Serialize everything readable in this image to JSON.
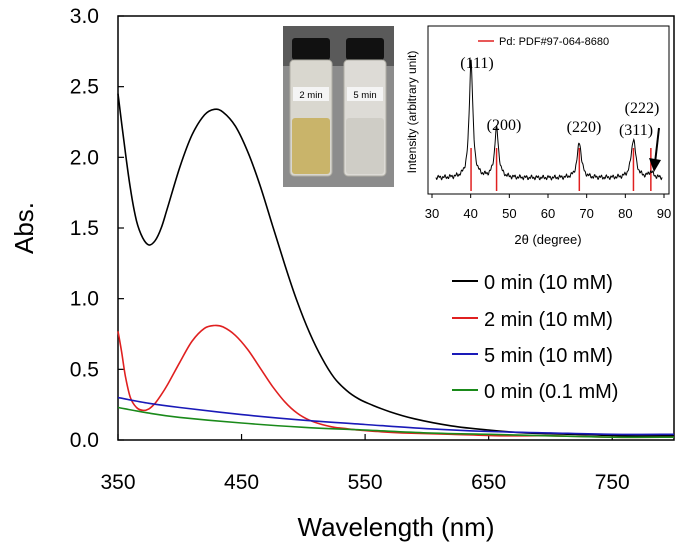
{
  "chart_data": [
    {
      "type": "line",
      "xlabel": "Wavelength (nm)",
      "ylabel": "Abs.",
      "xlim": [
        350,
        800
      ],
      "ylim": [
        0.0,
        3.0
      ],
      "x_ticks": [
        350,
        450,
        550,
        650,
        750
      ],
      "x_tick_labels": [
        "350",
        "450",
        "550",
        "650",
        "750"
      ],
      "y_ticks": [
        0.0,
        0.5,
        1.0,
        1.5,
        2.0,
        2.5,
        3.0
      ],
      "y_tick_labels": [
        "0.0",
        "0.5",
        "1.0",
        "1.5",
        "2.0",
        "2.5",
        "3.0"
      ],
      "legend_position": "bottom-right",
      "series": [
        {
          "name": "0 min (10 mM)",
          "color": "#000000",
          "x": [
            350,
            355,
            360,
            365,
            370,
            375,
            380,
            385,
            390,
            400,
            410,
            420,
            428,
            435,
            445,
            455,
            465,
            475,
            485,
            495,
            505,
            515,
            525,
            535,
            545,
            555,
            570,
            590,
            620,
            650,
            680,
            720,
            760,
            800
          ],
          "y": [
            2.45,
            2.1,
            1.78,
            1.55,
            1.43,
            1.38,
            1.41,
            1.5,
            1.64,
            1.93,
            2.16,
            2.3,
            2.34,
            2.32,
            2.22,
            2.04,
            1.8,
            1.52,
            1.24,
            0.98,
            0.76,
            0.58,
            0.44,
            0.35,
            0.29,
            0.25,
            0.2,
            0.15,
            0.1,
            0.07,
            0.05,
            0.04,
            0.03,
            0.03
          ]
        },
        {
          "name": "2 min (10 mM)",
          "color": "#e02020",
          "x": [
            350,
            353,
            356,
            360,
            365,
            370,
            375,
            380,
            385,
            390,
            400,
            410,
            420,
            428,
            435,
            445,
            455,
            465,
            475,
            485,
            495,
            505,
            515,
            525,
            535,
            545,
            560,
            580,
            620,
            660,
            700,
            750,
            800
          ],
          "y": [
            0.77,
            0.62,
            0.45,
            0.3,
            0.23,
            0.21,
            0.22,
            0.26,
            0.32,
            0.39,
            0.55,
            0.7,
            0.79,
            0.81,
            0.8,
            0.74,
            0.64,
            0.51,
            0.38,
            0.27,
            0.19,
            0.14,
            0.11,
            0.09,
            0.08,
            0.07,
            0.06,
            0.05,
            0.04,
            0.03,
            0.03,
            0.02,
            0.02
          ]
        },
        {
          "name": "5 min (10 mM)",
          "color": "#1a1ab8",
          "x": [
            350,
            375,
            400,
            450,
            500,
            550,
            600,
            650,
            700,
            750,
            800
          ],
          "y": [
            0.3,
            0.26,
            0.23,
            0.18,
            0.14,
            0.11,
            0.08,
            0.06,
            0.05,
            0.04,
            0.04
          ]
        },
        {
          "name": "0 min (0.1 mM)",
          "color": "#1a8a1a",
          "x": [
            350,
            375,
            400,
            450,
            500,
            550,
            600,
            650,
            700,
            750,
            800
          ],
          "y": [
            0.23,
            0.19,
            0.16,
            0.12,
            0.09,
            0.07,
            0.05,
            0.04,
            0.03,
            0.02,
            0.02
          ]
        }
      ]
    },
    {
      "type": "line",
      "xlabel": "2θ (degree)",
      "ylabel": "Intensity (arbitrary unit)",
      "xlim": [
        30,
        90
      ],
      "x_ticks": [
        30,
        40,
        50,
        60,
        70,
        80,
        90
      ],
      "x_tick_labels": [
        "30",
        "40",
        "50",
        "60",
        "70",
        "80",
        "90"
      ],
      "legend_entry": "Pd: PDF#97-064-8680",
      "reference_lines": [
        40.1,
        46.7,
        68.1,
        82.1,
        86.6
      ],
      "peak_labels": [
        {
          "text": "(111)",
          "x": 40.1
        },
        {
          "text": "(200)",
          "x": 46.7
        },
        {
          "text": "(220)",
          "x": 68.1
        },
        {
          "text": "(311)",
          "x": 82.1
        },
        {
          "text": "(222)",
          "x": 86.6
        }
      ],
      "peaks": [
        {
          "x": 40.1,
          "height": 1.0,
          "width": 0.55
        },
        {
          "x": 46.7,
          "height": 0.42,
          "width": 0.6
        },
        {
          "x": 68.1,
          "height": 0.3,
          "width": 0.65
        },
        {
          "x": 82.1,
          "height": 0.33,
          "width": 0.7
        },
        {
          "x": 86.6,
          "height": 0.05,
          "width": 0.7
        }
      ]
    }
  ],
  "photo": {
    "labels": [
      "2 min",
      "5 min"
    ]
  }
}
